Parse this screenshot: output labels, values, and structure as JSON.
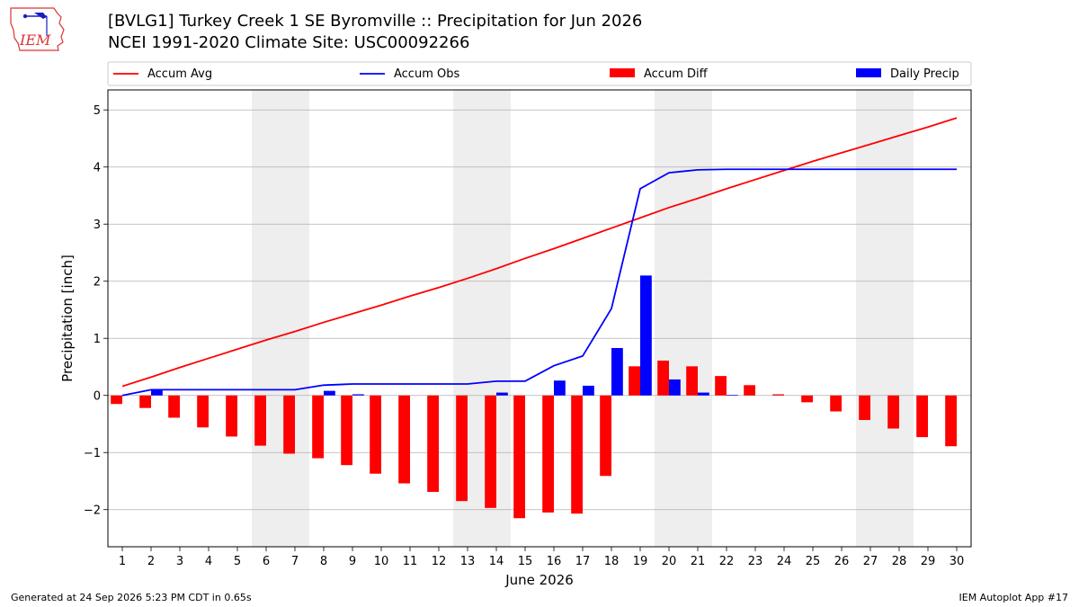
{
  "header": {
    "title_line1": "[BVLG1] Turkey Creek 1 SE Byromville :: Precipitation for Jun 2026",
    "title_line2": "NCEI 1991-2020 Climate Site: USC00092266",
    "logo_text": "IEM"
  },
  "footer": {
    "generated": "Generated at 24 Sep 2026 5:23 PM CDT in 0.65s",
    "app": "IEM Autoplot App #17"
  },
  "colors": {
    "accum_avg": "#ff0000",
    "accum_obs": "#0000ff",
    "accum_diff": "#ff0000",
    "daily_precip": "#0000ff",
    "weekend_shade": "#eeeeee",
    "grid": "#b0b0b0"
  },
  "chart_data": {
    "type": "bar",
    "xlabel": "June 2026",
    "ylabel": "Precipitation [inch]",
    "ylim": [
      -2.65,
      5.35
    ],
    "yticks": [
      -2,
      -1,
      0,
      1,
      2,
      3,
      4,
      5
    ],
    "ytick_labels": [
      "−2",
      "−1",
      "0",
      "1",
      "2",
      "3",
      "4",
      "5"
    ],
    "xlim": [
      0.5,
      30.5
    ],
    "grid": "horizontal",
    "legend": {
      "placement": "top",
      "entries": [
        "Accum Avg",
        "Accum Obs",
        "Accum Diff",
        "Daily Precip"
      ]
    },
    "weekend_shading": [
      [
        5.5,
        7.5
      ],
      [
        12.5,
        14.5
      ],
      [
        19.5,
        21.5
      ],
      [
        26.5,
        28.5
      ]
    ],
    "x": [
      1,
      2,
      3,
      4,
      5,
      6,
      7,
      8,
      9,
      10,
      11,
      12,
      13,
      14,
      15,
      16,
      17,
      18,
      19,
      20,
      21,
      22,
      23,
      24,
      25,
      26,
      27,
      28,
      29,
      30
    ],
    "x_labels": [
      "1",
      "2",
      "3",
      "4",
      "5",
      "6",
      "7",
      "8",
      "9",
      "10",
      "11",
      "12",
      "13",
      "14",
      "15",
      "16",
      "17",
      "18",
      "19",
      "20",
      "21",
      "22",
      "23",
      "24",
      "25",
      "26",
      "27",
      "28",
      "29",
      "30"
    ],
    "series": [
      {
        "name": "Accum Avg",
        "kind": "line",
        "values": [
          0.16,
          0.32,
          0.49,
          0.65,
          0.81,
          0.97,
          1.12,
          1.28,
          1.43,
          1.58,
          1.74,
          1.89,
          2.05,
          2.22,
          2.4,
          2.57,
          2.75,
          2.93,
          3.11,
          3.29,
          3.45,
          3.62,
          3.78,
          3.94,
          4.1,
          4.25,
          4.4,
          4.55,
          4.7,
          4.86
        ]
      },
      {
        "name": "Accum Obs",
        "kind": "line",
        "values": [
          0.0,
          0.1,
          0.1,
          0.1,
          0.1,
          0.1,
          0.1,
          0.18,
          0.2,
          0.2,
          0.2,
          0.2,
          0.2,
          0.25,
          0.25,
          0.52,
          0.69,
          1.52,
          3.62,
          3.9,
          3.95,
          3.96,
          3.96,
          3.96,
          3.96,
          3.96,
          3.96,
          3.96,
          3.96,
          3.96
        ]
      },
      {
        "name": "Accum Diff",
        "kind": "bar",
        "values": [
          -0.15,
          -0.22,
          -0.39,
          -0.56,
          -0.72,
          -0.88,
          -1.02,
          -1.1,
          -1.22,
          -1.37,
          -1.54,
          -1.69,
          -1.85,
          -1.97,
          -2.15,
          -2.05,
          -2.07,
          -1.41,
          0.51,
          0.61,
          0.51,
          0.34,
          0.18,
          0.02,
          -0.12,
          -0.28,
          -0.43,
          -0.58,
          -0.73,
          -0.89
        ]
      },
      {
        "name": "Daily Precip",
        "kind": "bar",
        "values": [
          0,
          0.1,
          0,
          0,
          0,
          0,
          0,
          0.08,
          0.02,
          0,
          0,
          0,
          0,
          0.05,
          0,
          0.26,
          0.17,
          0.83,
          2.1,
          0.28,
          0.05,
          0.01,
          0,
          0,
          0,
          0,
          0,
          0,
          0,
          0
        ]
      }
    ]
  }
}
